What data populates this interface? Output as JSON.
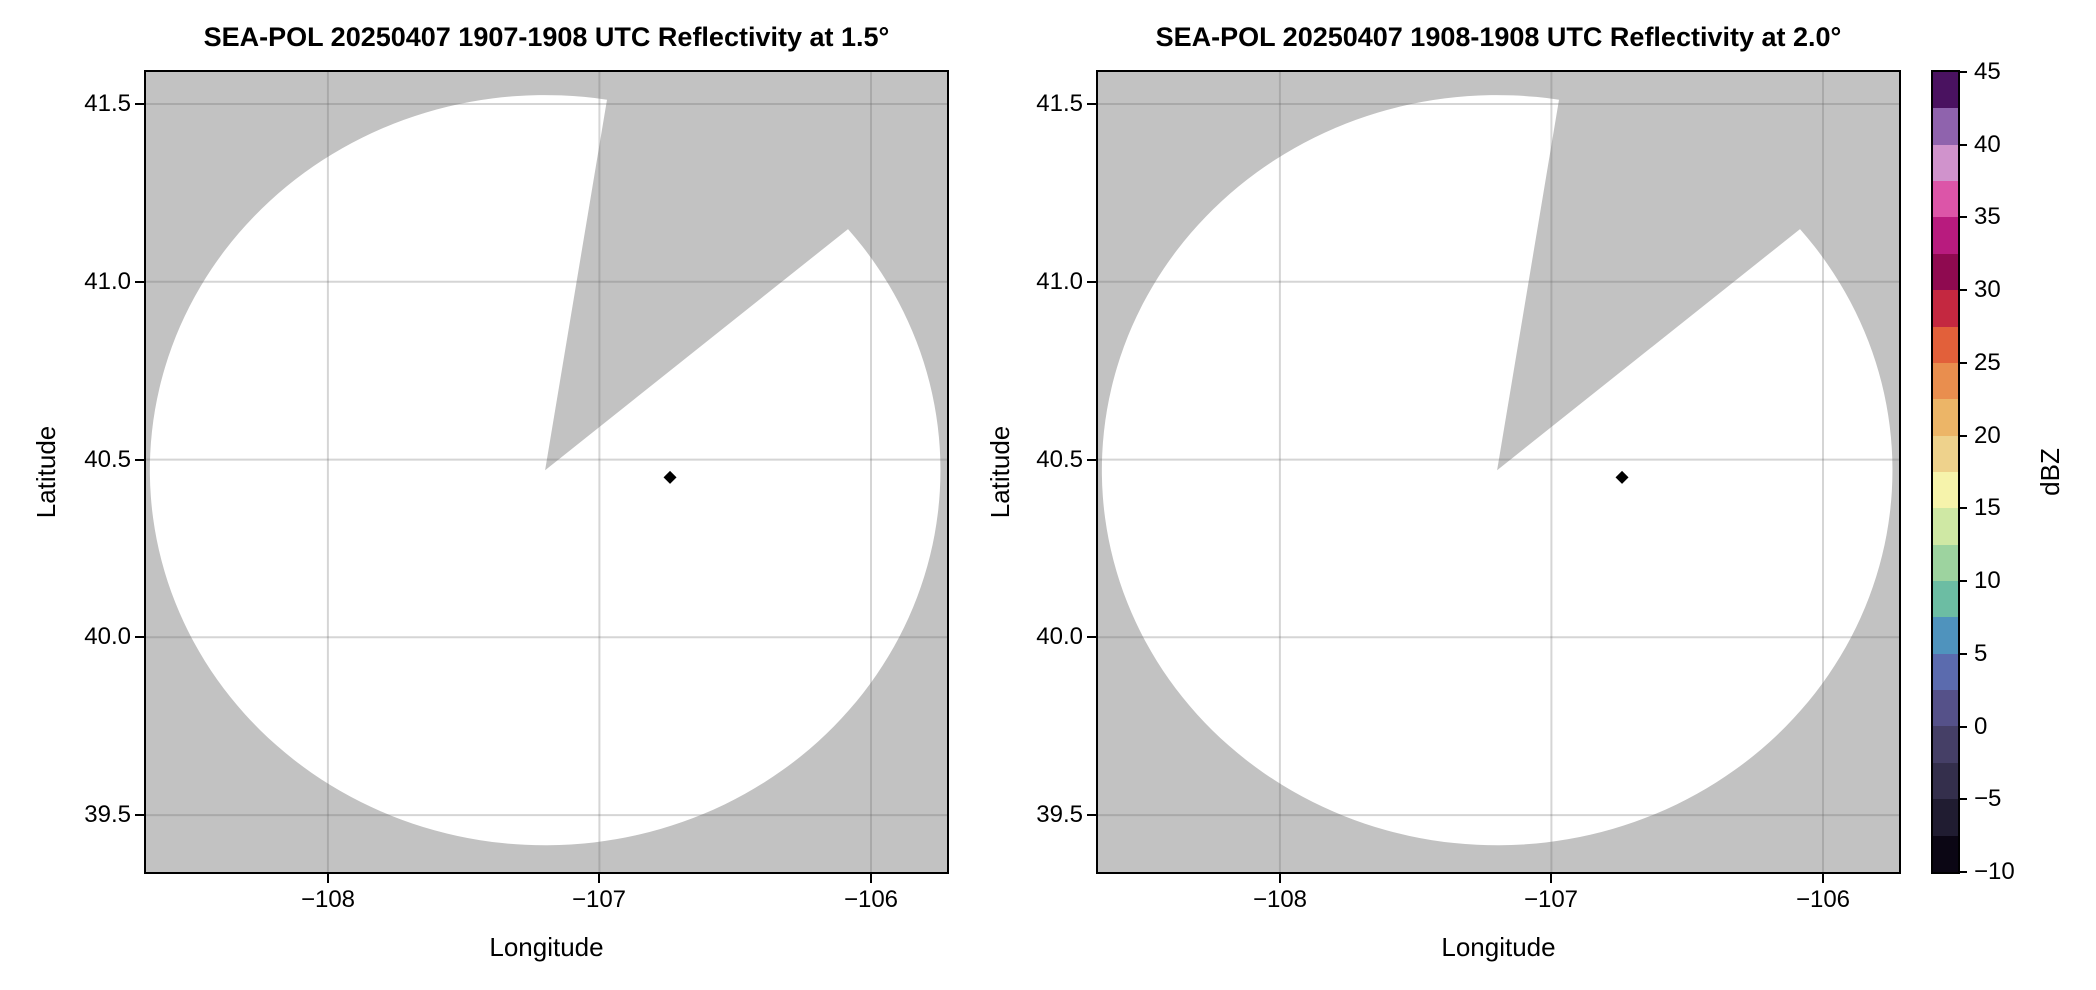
{
  "figure_kind": "matplotlib-style radar PPI reflectivity figure, two panels plus shared colorbar",
  "colors": {
    "figure_background": "#ffffff",
    "plot_background_no_data": "#c2c2c2",
    "radar_coverage_fill": "#ffffff",
    "gridline": "rgba(105,105,105,0.28)",
    "frame": "#000000",
    "point_marker": "#000000"
  },
  "chart_data": [
    {
      "type": "radar_ppi_reflectivity",
      "title": "SEA-POL 20250407 1907-1908 UTC Reflectivity at 1.5°",
      "xlabel": "Longitude",
      "ylabel": "Latitude",
      "xlim": [
        -108.67,
        -105.72
      ],
      "ylim": [
        39.34,
        41.59
      ],
      "xticks": [
        {
          "v": -108,
          "label": "−108"
        },
        {
          "v": -107,
          "label": "−107"
        },
        {
          "v": -106,
          "label": "−106"
        }
      ],
      "yticks": [
        {
          "v": 41.5,
          "label": "41.5"
        },
        {
          "v": 41.0,
          "label": "41.0"
        },
        {
          "v": 40.5,
          "label": "40.5"
        },
        {
          "v": 40.0,
          "label": "40.0"
        },
        {
          "v": 39.5,
          "label": "39.5"
        }
      ],
      "radar_center_lon_lat": [
        -107.2,
        40.47
      ],
      "coverage_radius_deg_lon": 1.456,
      "coverage_radius_deg_lat": 1.055,
      "missing_sector_azimuth_deg_from_north": [
        9,
        50
      ],
      "points": [
        {
          "lon": -106.74,
          "lat": 40.45,
          "shape": "diamond",
          "color": "#000000",
          "approx_value_dbz": -10
        }
      ],
      "grid": true
    },
    {
      "type": "radar_ppi_reflectivity",
      "title": "SEA-POL 20250407 1908-1908 UTC Reflectivity at 2.0°",
      "xlabel": "Longitude",
      "ylabel": "Latitude",
      "xlim": [
        -108.67,
        -105.72
      ],
      "ylim": [
        39.34,
        41.59
      ],
      "xticks": [
        {
          "v": -108,
          "label": "−108"
        },
        {
          "v": -107,
          "label": "−107"
        },
        {
          "v": -106,
          "label": "−106"
        }
      ],
      "yticks": [
        {
          "v": 41.5,
          "label": "41.5"
        },
        {
          "v": 41.0,
          "label": "41.0"
        },
        {
          "v": 40.5,
          "label": "40.5"
        },
        {
          "v": 40.0,
          "label": "40.0"
        },
        {
          "v": 39.5,
          "label": "39.5"
        }
      ],
      "radar_center_lon_lat": [
        -107.2,
        40.47
      ],
      "coverage_radius_deg_lon": 1.456,
      "coverage_radius_deg_lat": 1.055,
      "missing_sector_azimuth_deg_from_north": [
        9,
        50
      ],
      "points": [
        {
          "lon": -106.74,
          "lat": 40.45,
          "shape": "diamond",
          "color": "#000000",
          "approx_value_dbz": -10
        }
      ],
      "grid": true
    }
  ],
  "colorbar": {
    "label": "dBZ",
    "min": -10,
    "max": 45,
    "ticks": [
      {
        "v": 45,
        "label": "45"
      },
      {
        "v": 40,
        "label": "40"
      },
      {
        "v": 35,
        "label": "35"
      },
      {
        "v": 30,
        "label": "30"
      },
      {
        "v": 25,
        "label": "25"
      },
      {
        "v": 20,
        "label": "20"
      },
      {
        "v": 15,
        "label": "15"
      },
      {
        "v": 10,
        "label": "10"
      },
      {
        "v": 5,
        "label": "5"
      },
      {
        "v": 0,
        "label": "0"
      },
      {
        "v": -5,
        "label": "−5"
      },
      {
        "v": -10,
        "label": "−10"
      }
    ],
    "band_step_dbz": 2.5,
    "bands_bottom_to_top": [
      "#0b0614",
      "#201c31",
      "#342f4c",
      "#453f66",
      "#555189",
      "#5b6bae",
      "#4f93bd",
      "#6cbda3",
      "#9dd39f",
      "#cfe8a4",
      "#f6f3ab",
      "#eed28c",
      "#ecb567",
      "#e98e4e",
      "#e2603a",
      "#c42840",
      "#8f0a50",
      "#b81b7e",
      "#dc55a8",
      "#d093cc",
      "#8f63ad",
      "#4a1260"
    ]
  }
}
